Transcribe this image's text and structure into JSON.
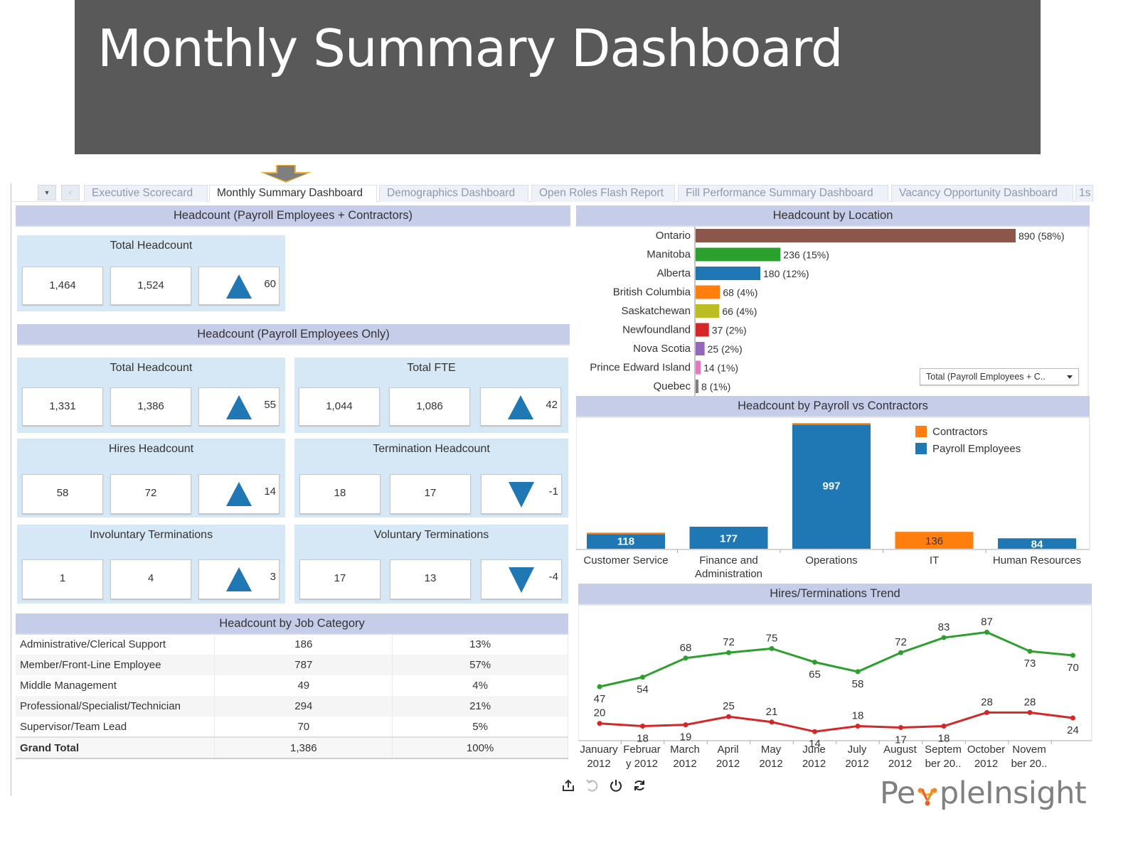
{
  "slide": {
    "title": "Monthly Summary Dashboard"
  },
  "tabs": {
    "controls": {
      "menu_icon": "caret-down-icon",
      "prev_icon": "chevron-left-icon"
    },
    "items": [
      {
        "label": "Executive Scorecard",
        "active": false
      },
      {
        "label": "Monthly Summary Dashboard",
        "active": true
      },
      {
        "label": "Demographics Dashboard",
        "active": false
      },
      {
        "label": "Open Roles Flash Report",
        "active": false
      },
      {
        "label": "Fill Performance Summary Dashboard",
        "active": false
      },
      {
        "label": "Vacancy Opportunity Dashboard",
        "active": false
      },
      {
        "label": "1s",
        "active": false
      }
    ]
  },
  "sections": {
    "payroll_contractors": "Headcount (Payroll Employees + Contractors)",
    "payroll_only": "Headcount (Payroll Employees Only)",
    "job_category": "Headcount by Job Category",
    "location": "Headcount by Location",
    "payroll_vs_contractors": "Headcount by Payroll vs Contractors",
    "trend": "Hires/Terminations Trend"
  },
  "kpis": {
    "total_headcount_all": {
      "title": "Total Headcount",
      "prev": "1,464",
      "curr": "1,524",
      "delta": "60",
      "direction": "up"
    },
    "total_headcount_payroll": {
      "title": "Total Headcount",
      "prev": "1,331",
      "curr": "1,386",
      "delta": "55",
      "direction": "up"
    },
    "total_fte": {
      "title": "Total FTE",
      "prev": "1,044",
      "curr": "1,086",
      "delta": "42",
      "direction": "up"
    },
    "hires": {
      "title": "Hires Headcount",
      "prev": "58",
      "curr": "72",
      "delta": "14",
      "direction": "up"
    },
    "terminations": {
      "title": "Termination Headcount",
      "prev": "18",
      "curr": "17",
      "delta": "-1",
      "direction": "down"
    },
    "involuntary": {
      "title": "Involuntary Terminations",
      "prev": "1",
      "curr": "4",
      "delta": "3",
      "direction": "up"
    },
    "voluntary": {
      "title": "Voluntary Terminations",
      "prev": "17",
      "curr": "13",
      "delta": "-4",
      "direction": "down"
    }
  },
  "job_table": {
    "rows": [
      {
        "category": "Administrative/Clerical Support",
        "count": "186",
        "pct": "13%"
      },
      {
        "category": "Member/Front-Line Employee",
        "count": "787",
        "pct": "57%"
      },
      {
        "category": "Middle Management",
        "count": "49",
        "pct": "4%"
      },
      {
        "category": "Professional/Specialist/Technician",
        "count": "294",
        "pct": "21%"
      },
      {
        "category": "Supervisor/Team Lead",
        "count": "70",
        "pct": "5%"
      }
    ],
    "total": {
      "category": "Grand Total",
      "count": "1,386",
      "pct": "100%"
    }
  },
  "location_filter": {
    "selected": "Total (Payroll Employees + C..",
    "icon": "caret-down-icon"
  },
  "toolbar": {
    "icons": [
      "export-icon",
      "undo-icon",
      "power-icon",
      "refresh-icon"
    ]
  },
  "logo": {
    "text_before": "Pe",
    "text_after": "pleInsight"
  },
  "chart_data": [
    {
      "type": "bar",
      "orientation": "horizontal",
      "title": "Headcount by Location",
      "categories": [
        "Ontario",
        "Manitoba",
        "Alberta",
        "British Columbia",
        "Saskatchewan",
        "Newfoundland",
        "Nova Scotia",
        "Prince Edward Island",
        "Quebec"
      ],
      "values": [
        890,
        236,
        180,
        68,
        66,
        37,
        25,
        14,
        8
      ],
      "labels": [
        "890 (58%)",
        "236 (15%)",
        "180 (12%)",
        "68 (4%)",
        "66 (4%)",
        "37 (2%)",
        "25 (2%)",
        "14 (1%)",
        "8 (1%)"
      ],
      "colors": [
        "#8c564b",
        "#2ca02c",
        "#1f77b4",
        "#ff7f0e",
        "#bcbd22",
        "#d62728",
        "#9467bd",
        "#e377c2",
        "#7f7f7f"
      ],
      "xlim": [
        0,
        900
      ],
      "grid": false
    },
    {
      "type": "bar",
      "stacked": true,
      "title": "Headcount by Payroll vs Contractors",
      "categories": [
        "Customer Service",
        "Finance and Administration",
        "Operations",
        "IT",
        "Human Resources"
      ],
      "series": [
        {
          "name": "Payroll Employees",
          "color": "#1f77b4",
          "values": [
            118,
            177,
            997,
            0,
            84
          ]
        },
        {
          "name": "Contractors",
          "color": "#ff7f0e",
          "values": [
            4,
            0,
            5,
            136,
            0
          ]
        }
      ],
      "data_labels": [
        "118",
        "177",
        "997",
        "136",
        "84"
      ],
      "legend": {
        "position": "top-right",
        "entries": [
          "Contractors",
          "Payroll Employees"
        ]
      },
      "ylim": [
        0,
        1010
      ],
      "grid": false
    },
    {
      "type": "line",
      "title": "Hires/Terminations Trend",
      "x": [
        "January 2012",
        "February 2012",
        "March 2012",
        "April 2012",
        "May 2012",
        "June 2012",
        "July 2012",
        "August 2012",
        "September 2012",
        "October 2012",
        "November 2012",
        ""
      ],
      "x_tick_lines": [
        [
          "January",
          "2012"
        ],
        [
          "Februar",
          "y 2012"
        ],
        [
          "March",
          "2012"
        ],
        [
          "April",
          "2012"
        ],
        [
          "May",
          "2012"
        ],
        [
          "June",
          "2012"
        ],
        [
          "July",
          "2012"
        ],
        [
          "August",
          "2012"
        ],
        [
          "Septem",
          "ber 20.."
        ],
        [
          "October",
          "2012"
        ],
        [
          "Novem",
          "ber 20.."
        ],
        [
          "",
          ""
        ]
      ],
      "series": [
        {
          "name": "Hires",
          "color": "#2ca02c",
          "values": [
            47,
            54,
            68,
            72,
            75,
            65,
            58,
            72,
            83,
            87,
            73,
            70
          ]
        },
        {
          "name": "Terminations",
          "color": "#d62728",
          "values": [
            20,
            18,
            19,
            25,
            21,
            14,
            18,
            17,
            18,
            28,
            28,
            24
          ]
        }
      ],
      "label_positions": {
        "Hires": [
          "below",
          "below",
          "above",
          "above",
          "above",
          "below",
          "below",
          "above",
          "above",
          "above",
          "below",
          "below"
        ],
        "Terminations": [
          "above",
          "below",
          "below",
          "above",
          "above",
          "below",
          "above",
          "below",
          "below",
          "above",
          "above",
          "below"
        ]
      },
      "ylim": [
        0,
        100
      ],
      "grid": false
    }
  ]
}
